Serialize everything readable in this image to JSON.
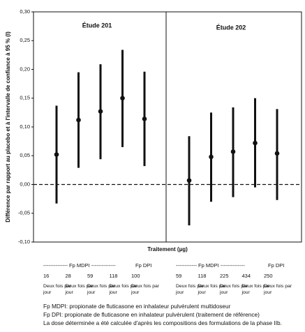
{
  "chart_data": {
    "type": "errorbar",
    "ylabel": "Différence par rapport au placebo et à l'intervalle de confiance à 95 % (I)",
    "xlabel": "Traitement (µg)",
    "ylim": [
      -0.1,
      0.3
    ],
    "yticks": [
      {
        "value": 0.3,
        "label": "0,30"
      },
      {
        "value": 0.25,
        "label": "0,25"
      },
      {
        "value": 0.2,
        "label": "0,20"
      },
      {
        "value": 0.15,
        "label": "0,15"
      },
      {
        "value": 0.1,
        "label": "0,10"
      },
      {
        "value": 0.05,
        "label": "0,05"
      },
      {
        "value": 0,
        "label": "0,00"
      },
      {
        "value": -0.05,
        "label": "-0,05"
      },
      {
        "value": -0.1,
        "label": "-0,10"
      }
    ],
    "reference_line": 0,
    "color": "#111111",
    "panels": [
      {
        "title": "Étude 201",
        "group_labels": [
          "-------------- Fp MDPI --------------",
          "Fp DPI"
        ],
        "categories": [
          "16",
          "28",
          "59",
          "118",
          "100"
        ],
        "frequency_labels": [
          "Deux fois par jour",
          "Deux fois par jour",
          "Deux fois par jour",
          "Deux fois par jour",
          "Deux fois par jour"
        ],
        "values": [
          0.052,
          0.112,
          0.127,
          0.15,
          0.114
        ],
        "low": [
          -0.033,
          0.029,
          0.044,
          0.065,
          0.032
        ],
        "high": [
          0.137,
          0.195,
          0.209,
          0.234,
          0.196
        ]
      },
      {
        "title": "Étude 202",
        "group_labels": [
          "------------ Fp MDPI --------------",
          "Fp DPI"
        ],
        "categories": [
          "59",
          "118",
          "225",
          "434",
          "250"
        ],
        "frequency_labels": [
          "Deux fois par jour",
          "Deux fois par jour",
          "Deux fois par jour",
          "Deux fois par jour",
          "Deux fois par jour"
        ],
        "values": [
          0.007,
          0.048,
          0.057,
          0.072,
          0.054
        ],
        "low": [
          -0.071,
          -0.03,
          -0.022,
          -0.005,
          -0.027
        ],
        "high": [
          0.084,
          0.125,
          0.134,
          0.15,
          0.131
        ]
      }
    ],
    "notes": [
      "Fp MDPI: propionate de fluticasone en inhalateur pulvérulent multidoseur",
      "Fp DPI: propionate de fluticasone en inhalateur pulvérulent (traitement de référence)",
      "La dose déterminée a été calculée d'après les compositions des formulations de la phase IIb."
    ]
  }
}
